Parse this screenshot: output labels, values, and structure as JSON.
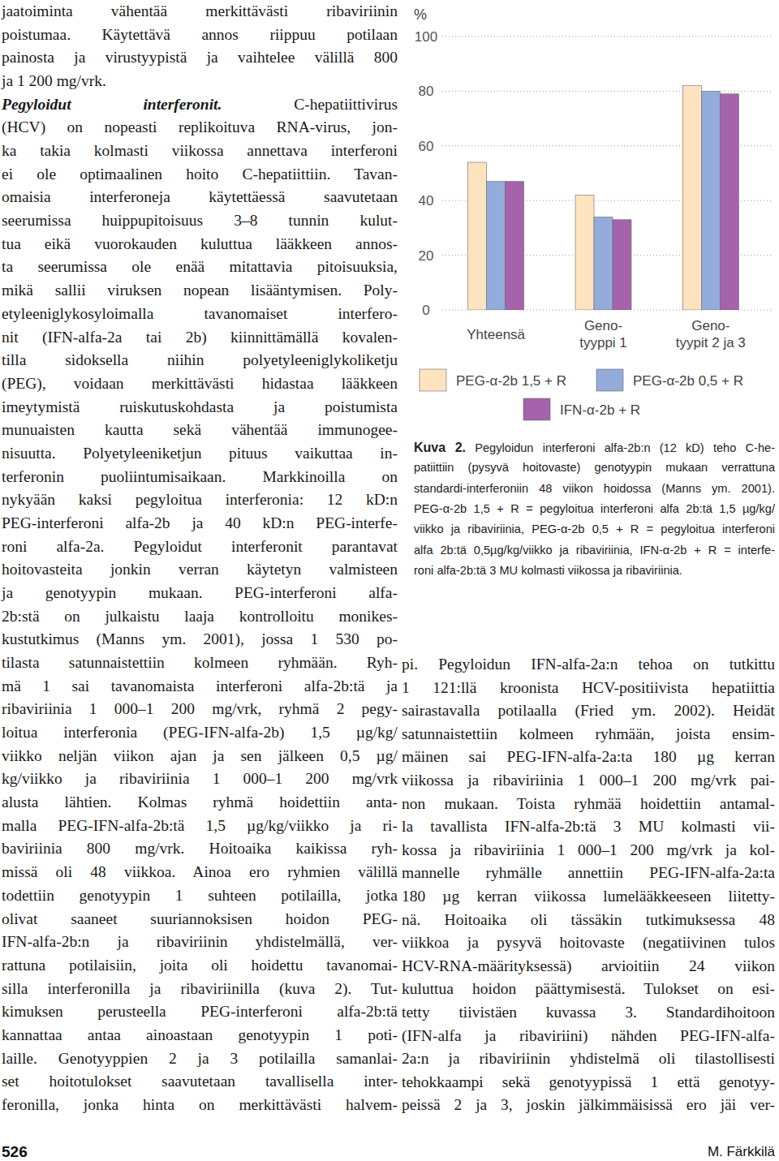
{
  "page": {
    "left_column": {
      "paragraph_1": [
        "jaatoiminta vähentää merkittävästi ribaviriinin",
        "poistumaa. Käytettävä annos riippuu potilaan",
        "painosta ja virustyypistä ja vaihtelee välillä 800",
        "ja 1 200 mg/vrk."
      ],
      "section_heading": "Pegyloidut interferonit.",
      "paragraph_2": [
        "C-hepatiittivirus",
        "(HCV) on nopeasti replikoituva RNA-virus, jon-",
        "ka takia kolmasti viikossa annettava interferoni",
        "ei ole optimaalinen hoito C-hepatiittiin. Tavan-",
        "omaisia interferoneja käytettäessä saavutetaan",
        "seerumissa huippupitoisuus 3–8 tunnin kulut-",
        "tua eikä vuorokauden kuluttua lääkkeen annos-",
        "ta seerumissa ole enää mitattavia pitoisuuksia,",
        "mikä sallii viruksen nopean lisääntymisen. Poly-",
        "etyleeniglykosyloimalla tavanomaiset interfero-",
        "nit (IFN-alfa-2a tai 2b) kiinnittämällä kovalen-",
        "tilla sidoksella niihin polyetyleeniglykoliketju",
        "(PEG), voidaan merkittävästi hidastaa lääkkeen",
        "imeytymistä ruiskutuskohdasta ja poistumista",
        "munuaisten kautta sekä vähentää immunogee-",
        "nisuutta. Polyetyleeniketjun pituus vaikuttaa in-",
        "terferonin puoliintumisaikaan. Markkinoilla on",
        "nykyään kaksi pegyloitua interferonia: 12 kD:n",
        "PEG-interferoni alfa-2b ja 40 kD:n PEG-interfe-",
        "roni alfa-2a. Pegyloidut interferonit parantavat",
        "hoitovasteita jonkin verran käytetyn valmisteen",
        "ja genotyypin mukaan. PEG-interferoni alfa-",
        "2b:stä on julkaistu laaja kontrolloitu monikes-",
        "kustutkimus (Manns ym. 2001), jossa 1 530 po-",
        "tilasta satunnaistettiin kolmeen ryhmään. Ryh-",
        "mä 1 sai tavanomaista interferoni alfa-2b:tä ja",
        "ribaviriinia 1 000–1 200 mg/vrk, ryhmä 2 pegy-",
        "loitua interferonia (PEG-IFN-alfa-2b) 1,5 µg/kg/",
        "viikko neljän viikon ajan ja sen jälkeen 0,5 µg/",
        "kg/viikko ja ribaviriinia 1 000–1 200 mg/vrk",
        "alusta lähtien. Kolmas ryhmä hoidettiin anta-",
        "malla PEG-IFN-alfa-2b:tä 1,5 µg/kg/viikko ja ri-",
        "baviriinia 800 mg/vrk. Hoitoaika kaikissa ryh-",
        "missä oli 48 viikkoa. Ainoa ero ryhmien välillä",
        "todettiin genotyypin 1 suhteen potilailla, jotka",
        "olivat saaneet suuriannoksisen hoidon PEG-",
        "IFN-alfa-2b:n ja ribaviriinin yhdistelmällä, ver-",
        "rattuna potilaisiin, joita oli hoidettu tavanomai-",
        "silla interferonilla ja ribaviriinilla (kuva 2). Tut-",
        "kimuksen perusteella PEG-interferoni alfa-2b:tä",
        "kannattaa antaa ainoastaan genotyypin 1 poti-",
        "laille. Genotyyppien 2 ja 3 potilailla samanlai-",
        "set hoitotulokset saavutetaan tavallisella inter-",
        "feronilla, jonka hinta on merkittävästi halvem-"
      ]
    },
    "right_column": [
      "pi. Pegyloidun IFN-alfa-2a:n tehoa on tutkittu",
      "1 121:llä kroonista HCV-positiivista hepatiittia",
      "sairastavalla potilaalla (Fried ym. 2002). Heidät",
      "satunnaistettiin kolmeen ryhmään, joista ensim-",
      "mäinen sai PEG-IFN-alfa-2a:ta 180 µg kerran",
      "viikossa ja ribaviriinia 1 000–1 200 mg/vrk pai-",
      "non mukaan. Toista ryhmää hoidettiin antamal-",
      "la tavallista IFN-alfa-2b:tä 3 MU kolmasti vii-",
      "kossa ja ribaviriinia 1 000–1 200 mg/vrk ja kol-",
      "mannelle ryhmälle annettiin PEG-IFN-alfa-2a:ta",
      "180 µg kerran viikossa lumelääkkeeseen liitetty-",
      "nä. Hoitoaika oli tässäkin tutkimuksessa 48",
      "viikkoa ja pysyvä hoitovaste (negatiivinen tulos",
      "HCV-RNA-määrityksessä) arvioitiin 24 viikon",
      "kuluttua hoidon päättymisestä. Tulokset on esi-",
      "tetty tiivistäen kuvassa 3. Standardihoitoon",
      "(IFN-alfa ja ribaviriini) nähden PEG-IFN-alfa-",
      "2a:n ja ribaviriinin yhdistelmä oli tilastollisesti",
      "tehokkaampi sekä genotyypissä 1 että genotyy-",
      "peissä 2 ja 3, joskin jälkimmäisissä ero jäi ver-"
    ],
    "footer": {
      "page_number": "526",
      "author": "M. Färkkilä"
    }
  },
  "figure_caption": {
    "label": "Kuva 2.",
    "lines": [
      "Pegyloidun interferoni alfa-2b:n (12 kD) teho C-he-",
      "patiittiin (pysyvä hoitovaste) genotyypin mukaan verrattuna",
      "standardi-interferoniin 48 viikon hoidossa (Manns ym. 2001).",
      "PEG-α-2b 1,5 + R = pegyloitua interferoni alfa 2b:tä 1,5 µg/kg/",
      "viikko ja ribaviriinia, PEG-α-2b 0,5 + R = pegyloitua interferoni",
      "alfa 2b:tä 0,5µg/kg/viikko ja ribaviriinia, IFN-α-2b + R = interfe-",
      "roni alfa-2b:tä 3 MU kolmasti viikossa ja ribaviriinia."
    ]
  },
  "chart_data": {
    "type": "bar",
    "ylabel": "%",
    "categories": [
      "Yhteensä",
      "Geno-\ntyyppi 1",
      "Geno-\ntyypit 2 ja 3"
    ],
    "series": [
      {
        "name": "PEG-α-2b 1,5 + R",
        "color": "#fde3bf",
        "values": [
          54,
          42,
          82
        ]
      },
      {
        "name": "PEG-α-2b 0,5 + R",
        "color": "#93acdb",
        "values": [
          47,
          34,
          80
        ]
      },
      {
        "name": "IFN-α-2b + R",
        "color": "#a463ab",
        "values": [
          47,
          33,
          79
        ]
      }
    ],
    "ylim": [
      0,
      100
    ],
    "yticks": [
      0,
      20,
      40,
      60,
      80,
      100
    ],
    "grid": true,
    "legend": "bottom"
  }
}
